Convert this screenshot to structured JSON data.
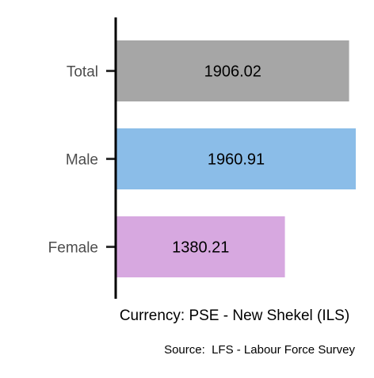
{
  "chart_data": {
    "type": "bar",
    "orientation": "horizontal",
    "categories": [
      "Total",
      "Male",
      "Female"
    ],
    "values": [
      1906.02,
      1960.91,
      1380.21
    ],
    "value_labels": [
      "1906.02",
      "1960.91",
      "1380.21"
    ],
    "colors": [
      "#a6a6a6",
      "#8bbde8",
      "#d7a8e0"
    ],
    "xlabel": "Currency: PSE - New Shekel (ILS)",
    "ylabel": "",
    "title": "",
    "xlim": [
      0,
      1960.91
    ],
    "grid": false,
    "legend": "none",
    "caption": "Source:  LFS - Labour Force Survey"
  }
}
